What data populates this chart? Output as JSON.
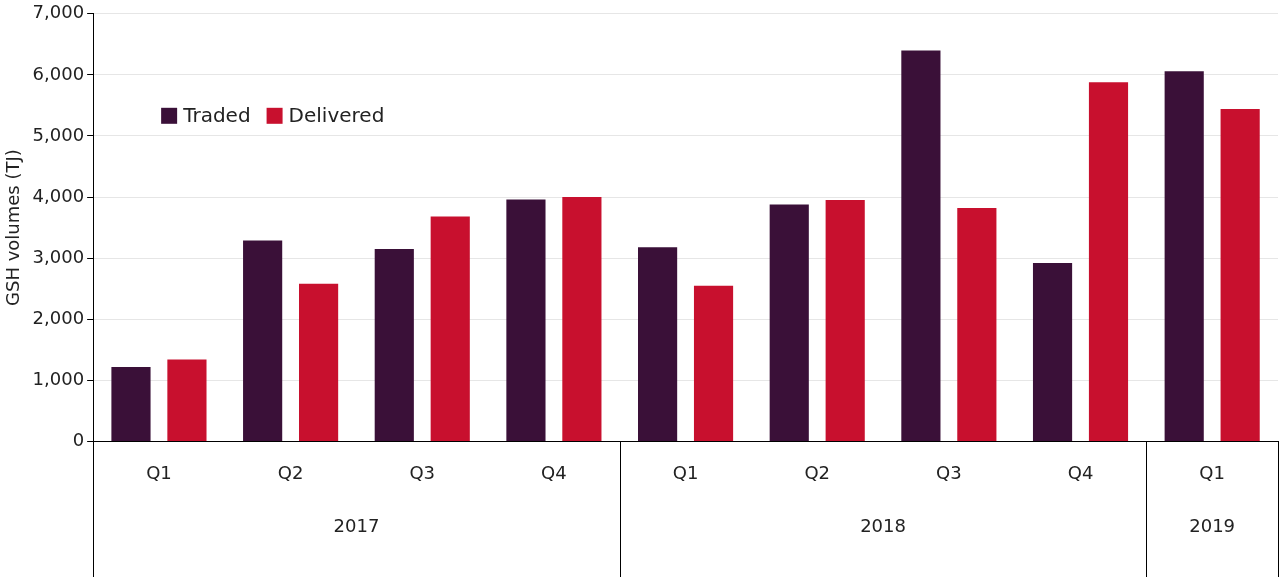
{
  "chart_data": {
    "type": "bar",
    "ylabel": "GSH volumes (TJ)",
    "categories": [
      "Q1",
      "Q2",
      "Q3",
      "Q4",
      "Q1",
      "Q2",
      "Q3",
      "Q4",
      "Q1"
    ],
    "series": [
      {
        "name": "Traded",
        "color": "#3a1038",
        "values": [
          1220,
          3290,
          3150,
          3960,
          3180,
          3880,
          6400,
          2920,
          6060
        ]
      },
      {
        "name": "Delivered",
        "color": "#c8102e",
        "values": [
          1340,
          2580,
          3680,
          4000,
          2550,
          3950,
          3820,
          5880,
          5440
        ]
      }
    ],
    "annotations": [
      "2017",
      "2018",
      "2019"
    ],
    "ylim": [
      0,
      7000
    ],
    "yticks": [
      0,
      {
        "value": 1000,
        "label": "1,000"
      },
      {
        "value": 2000,
        "label": "2,000"
      },
      {
        "value": 3000,
        "label": "3,000"
      },
      {
        "value": 4000,
        "label": "4,000"
      },
      {
        "value": 5000,
        "label": "5,000"
      },
      {
        "value": 6000,
        "label": "6,000"
      },
      {
        "value": 7000,
        "label": "7,000"
      }
    ],
    "grid": "y",
    "legend": "top left"
  }
}
